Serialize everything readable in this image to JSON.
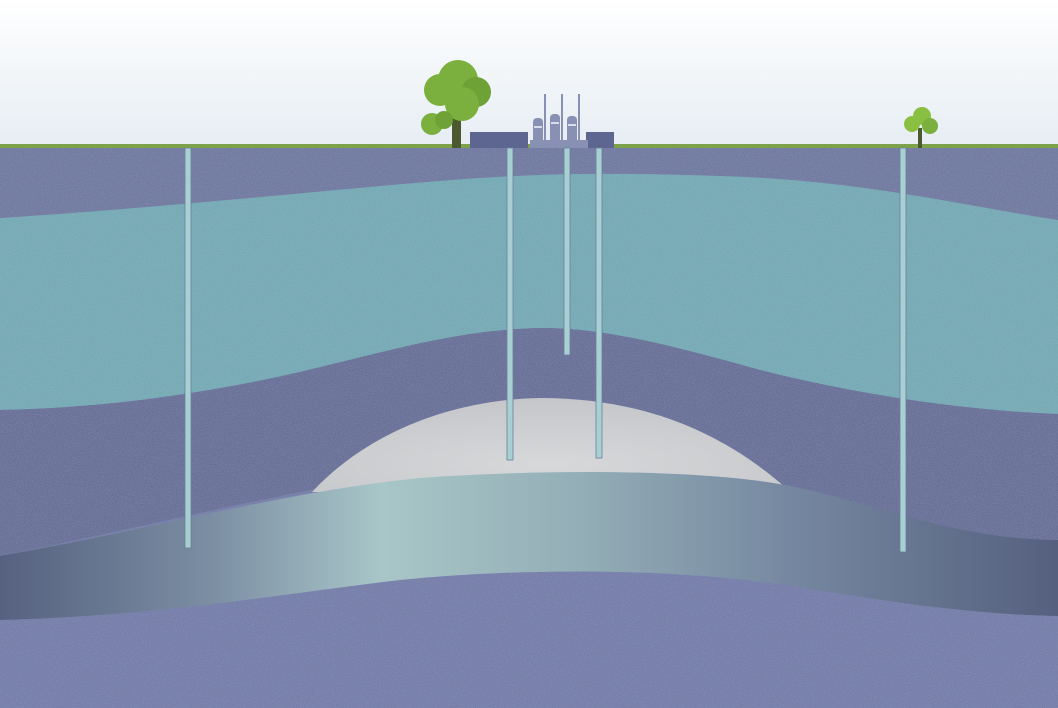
{
  "diagram": {
    "kind": "geological-cross-section",
    "labels": [],
    "elements": {
      "sky": "sky",
      "ground_surface": "grass-line",
      "strata": [
        {
          "id": "overburden-upper",
          "color": "#65709b"
        },
        {
          "id": "aquifer-upper",
          "color": "#6aa5b1"
        },
        {
          "id": "caprock-middle",
          "color": "#5b6593"
        },
        {
          "id": "storage-dome",
          "color": "#c9cbcd"
        },
        {
          "id": "reservoir-layer",
          "color": "#8aa3ad"
        },
        {
          "id": "basement-lower",
          "color": "#6a75a5"
        }
      ],
      "surface_features": [
        "large-tree-icon",
        "small-tree-icon",
        "processing-plant-icon"
      ],
      "wells": [
        "monitoring-well-left",
        "injection-well-1",
        "monitoring-well-shallow",
        "injection-well-2",
        "monitoring-well-right"
      ]
    },
    "colors": {
      "sky_top": "#ffffff",
      "sky_bottom": "#e8eef4",
      "grass": "#7ea24a",
      "tree_foliage": "#7bb03e",
      "tree_trunk": "#4b5a2e",
      "plant_body": "#8891b4",
      "plant_building": "#5d6691",
      "well_fill": "#a8cfd2",
      "well_stroke": "#6b7f9a"
    }
  }
}
